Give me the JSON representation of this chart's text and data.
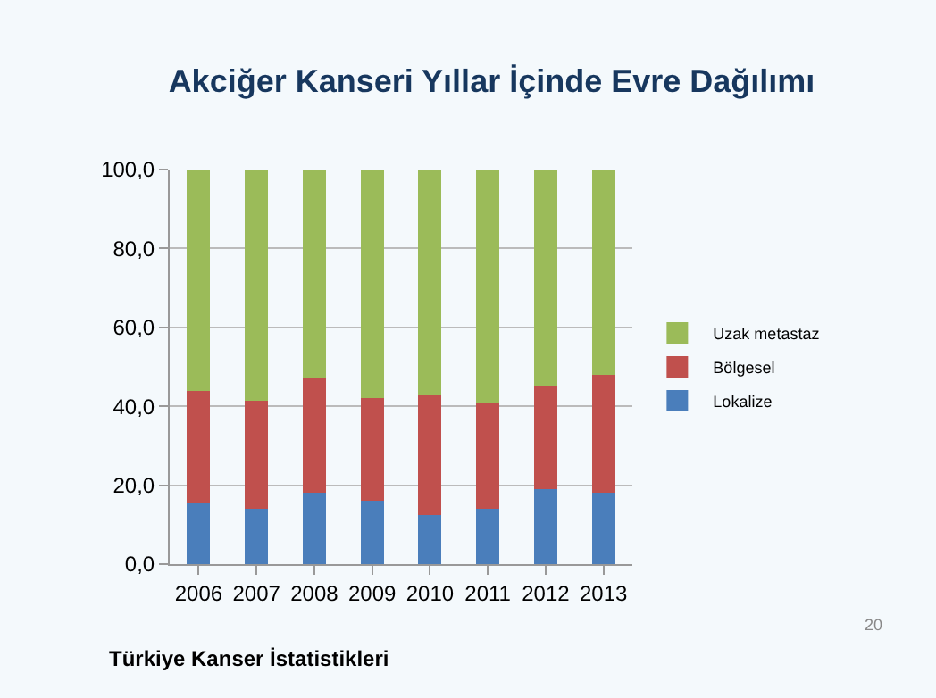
{
  "chart_data": {
    "type": "bar",
    "title": "Akciğer Kanseri Yıllar İçinde Evre Dağılımı",
    "categories": [
      "2006",
      "2007",
      "2008",
      "2009",
      "2010",
      "2011",
      "2012",
      "2013"
    ],
    "stacked": true,
    "series": [
      {
        "name": "Lokalize",
        "color": "#4a7ebb",
        "values": [
          15.6,
          14,
          18,
          16,
          12.4,
          14,
          19,
          18
        ]
      },
      {
        "name": "Bölgesel",
        "color": "#c0504d",
        "values": [
          28.4,
          27.5,
          29,
          26,
          30.6,
          27,
          26,
          30
        ]
      },
      {
        "name": "Uzak metastaz",
        "color": "#9bbb59",
        "values": [
          56,
          58.5,
          53,
          58,
          57,
          59,
          55,
          52
        ]
      }
    ],
    "ylim": [
      0,
      100
    ],
    "yticks": [
      {
        "value": 0,
        "label": "0,0"
      },
      {
        "value": 20,
        "label": "20,0"
      },
      {
        "value": 40,
        "label": "40,0"
      },
      {
        "value": 60,
        "label": "60,0"
      },
      {
        "value": 80,
        "label": "80,0"
      },
      {
        "value": 100,
        "label": "100,0"
      }
    ],
    "grid": "y",
    "legend": "right",
    "annotations": [
      "Türkiye Kanser İstatistikleri",
      "20"
    ]
  }
}
